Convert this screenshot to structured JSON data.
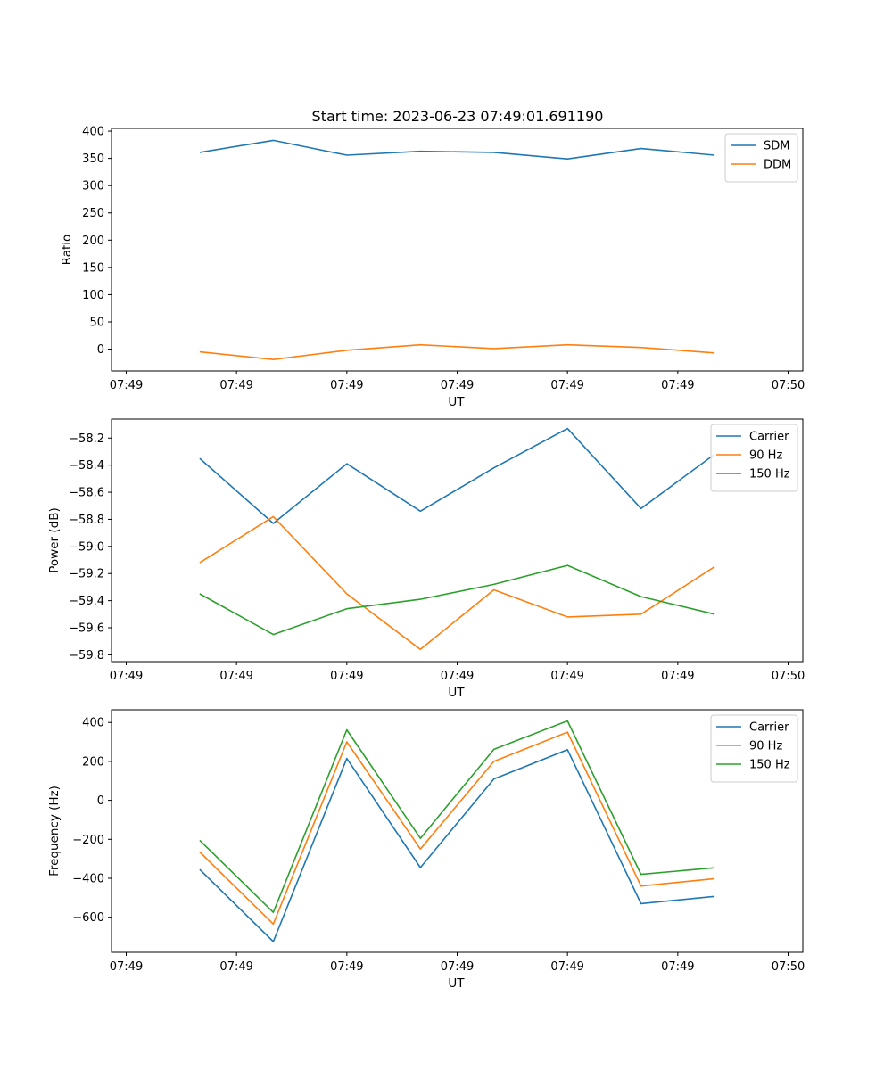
{
  "figure": {
    "title": "Start time: 2023-06-23 07:49:01.691190"
  },
  "chart_data": [
    {
      "type": "line",
      "title": "Start time: 2023-06-23 07:49:01.691190",
      "xlabel": "UT",
      "ylabel": "Ratio",
      "x": [
        1,
        2,
        3,
        4,
        5,
        6,
        7,
        8
      ],
      "x_tick_values": [
        0,
        1.5,
        3,
        4.5,
        6,
        7.5,
        9
      ],
      "x_tick_labels": [
        "07:49",
        "07:49",
        "07:49",
        "07:49",
        "07:49",
        "07:49",
        "07:50"
      ],
      "xlim": [
        -0.2,
        9.2
      ],
      "ylim": [
        -40,
        405
      ],
      "y_ticks": [
        0,
        50,
        100,
        150,
        200,
        250,
        300,
        350,
        400
      ],
      "y_tick_labels": [
        "0",
        "50",
        "100",
        "150",
        "200",
        "250",
        "300",
        "350",
        "400"
      ],
      "legend_position": "top-right",
      "series": [
        {
          "name": "SDM",
          "color": "#1f77b4",
          "values": [
            361,
            383,
            356,
            363,
            361,
            349,
            368,
            356
          ]
        },
        {
          "name": "DDM",
          "color": "#ff7f0e",
          "values": [
            -5,
            -19,
            -2,
            8,
            1,
            8,
            3,
            -7
          ]
        }
      ]
    },
    {
      "type": "line",
      "xlabel": "UT",
      "ylabel": "Power (dB)",
      "x": [
        1,
        2,
        3,
        4,
        5,
        6,
        7,
        8
      ],
      "x_tick_values": [
        0,
        1.5,
        3,
        4.5,
        6,
        7.5,
        9
      ],
      "x_tick_labels": [
        "07:49",
        "07:49",
        "07:49",
        "07:49",
        "07:49",
        "07:49",
        "07:50"
      ],
      "xlim": [
        -0.2,
        9.2
      ],
      "ylim": [
        -59.85,
        -58.06
      ],
      "y_ticks": [
        -59.8,
        -59.6,
        -59.4,
        -59.2,
        -59.0,
        -58.8,
        -58.6,
        -58.4,
        -58.2
      ],
      "y_tick_labels": [
        "−59.8",
        "−59.6",
        "−59.4",
        "−59.2",
        "−59.0",
        "−58.8",
        "−58.6",
        "−58.4",
        "−58.2"
      ],
      "legend_position": "top-right",
      "series": [
        {
          "name": "Carrier",
          "color": "#1f77b4",
          "values": [
            -58.35,
            -58.83,
            -58.39,
            -58.74,
            -58.42,
            -58.13,
            -58.72,
            -58.32
          ]
        },
        {
          "name": "90 Hz",
          "color": "#ff7f0e",
          "values": [
            -59.12,
            -58.78,
            -59.35,
            -59.76,
            -59.32,
            -59.52,
            -59.5,
            -59.15
          ]
        },
        {
          "name": "150 Hz",
          "color": "#2ca02c",
          "values": [
            -59.35,
            -59.65,
            -59.46,
            -59.39,
            -59.28,
            -59.14,
            -59.37,
            -59.5
          ]
        }
      ]
    },
    {
      "type": "line",
      "xlabel": "UT",
      "ylabel": "Frequency (Hz)",
      "x": [
        1,
        2,
        3,
        4,
        5,
        6,
        7,
        8
      ],
      "x_tick_values": [
        0,
        1.5,
        3,
        4.5,
        6,
        7.5,
        9
      ],
      "x_tick_labels": [
        "07:49",
        "07:49",
        "07:49",
        "07:49",
        "07:49",
        "07:49",
        "07:50"
      ],
      "xlim": [
        -0.2,
        9.2
      ],
      "ylim": [
        -780,
        465
      ],
      "y_ticks": [
        -600,
        -400,
        -200,
        0,
        200,
        400
      ],
      "y_tick_labels": [
        "−600",
        "−400",
        "−200",
        "0",
        "200",
        "400"
      ],
      "legend_position": "top-right",
      "series": [
        {
          "name": "Carrier",
          "color": "#1f77b4",
          "values": [
            -355,
            -725,
            215,
            -345,
            110,
            260,
            -530,
            -493
          ]
        },
        {
          "name": "90 Hz",
          "color": "#ff7f0e",
          "values": [
            -265,
            -635,
            300,
            -250,
            200,
            350,
            -440,
            -402
          ]
        },
        {
          "name": "150 Hz",
          "color": "#2ca02c",
          "values": [
            -205,
            -575,
            362,
            -195,
            262,
            408,
            -380,
            -346
          ]
        }
      ]
    }
  ]
}
